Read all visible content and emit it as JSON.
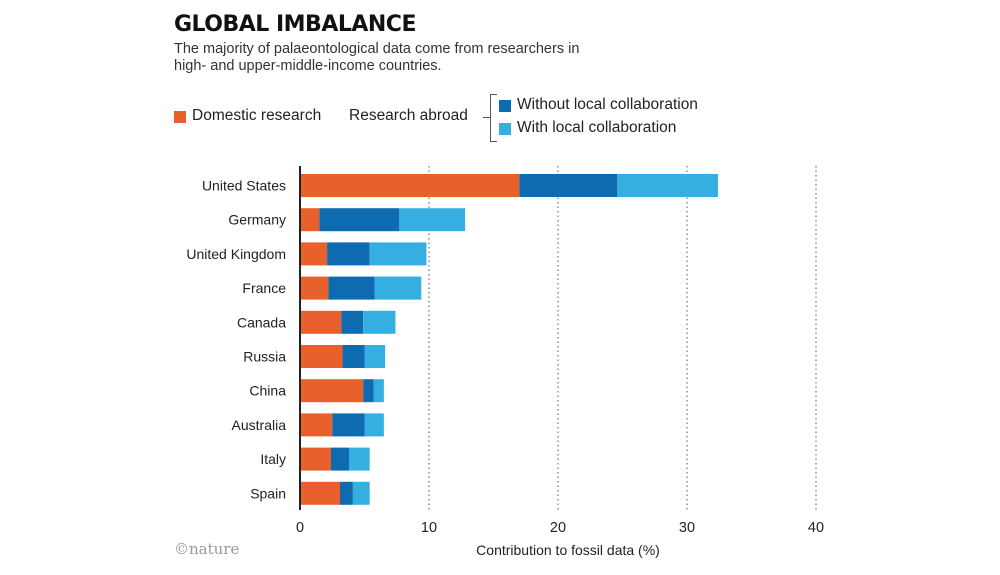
{
  "title": "GLOBAL IMBALANCE",
  "subtitle": "The majority of palaeontological data come from researchers in high- and upper-middle-income countries.",
  "legend": {
    "domestic": "Domestic research",
    "abroad": "Research abroad",
    "without": "Without local collaboration",
    "with": "With local collaboration"
  },
  "credit": "©nature",
  "colors": {
    "domestic": "#e8612c",
    "without": "#0e6bb0",
    "with": "#35aee2"
  },
  "chart_data": {
    "type": "bar",
    "orientation": "horizontal",
    "stacked": true,
    "categories": [
      "United States",
      "Germany",
      "United Kingdom",
      "France",
      "Canada",
      "Russia",
      "China",
      "Australia",
      "Italy",
      "Spain"
    ],
    "series": [
      {
        "name": "Domestic research",
        "values": [
          17.0,
          1.5,
          2.1,
          2.2,
          3.2,
          3.3,
          4.9,
          2.5,
          2.4,
          3.1
        ]
      },
      {
        "name": "Without local collaboration",
        "values": [
          7.6,
          6.2,
          3.3,
          3.6,
          1.7,
          1.7,
          0.8,
          2.5,
          1.4,
          1.0
        ]
      },
      {
        "name": "With local collaboration",
        "values": [
          7.8,
          5.1,
          4.4,
          3.6,
          2.5,
          1.6,
          0.8,
          1.5,
          1.6,
          1.3
        ]
      }
    ],
    "xlabel": "Contribution to fossil data (%)",
    "ylabel": "",
    "xlim": [
      0,
      40
    ],
    "xticks": [
      0,
      10,
      20,
      30,
      40
    ],
    "grid": "dotted vertical lines",
    "legend_position": "top"
  }
}
